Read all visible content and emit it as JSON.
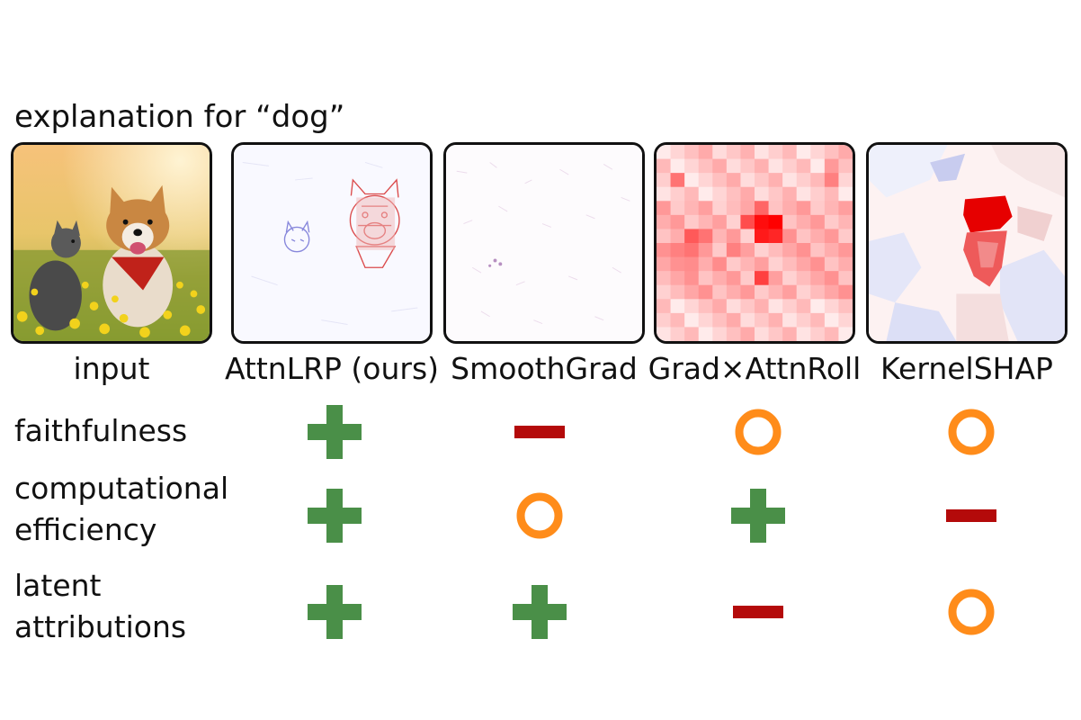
{
  "title": "explanation for “dog”",
  "columns": [
    {
      "key": "input",
      "label": "input"
    },
    {
      "key": "attnlrp",
      "label": "AttnLRP (ours)"
    },
    {
      "key": "smoothgrad",
      "label": "SmoothGrad"
    },
    {
      "key": "gradattnroll",
      "label": "Grad×AttnRoll"
    },
    {
      "key": "kernelshap",
      "label": "KernelSHAP"
    }
  ],
  "criteria": [
    {
      "lines": [
        "faithfulness"
      ],
      "ratings": {
        "attnlrp": "plus",
        "smoothgrad": "minus",
        "gradattnroll": "circle",
        "kernelshap": "circle"
      }
    },
    {
      "lines": [
        "computational",
        "efficiency"
      ],
      "ratings": {
        "attnlrp": "plus",
        "smoothgrad": "circle",
        "gradattnroll": "plus",
        "kernelshap": "minus"
      }
    },
    {
      "lines": [
        "latent",
        "attributions"
      ],
      "ratings": {
        "attnlrp": "plus",
        "smoothgrad": "plus",
        "gradattnroll": "minus",
        "kernelshap": "circle"
      }
    }
  ],
  "rating_colors": {
    "plus": "#4a8f48",
    "minus": "#b40a0a",
    "circle": "#ff8c1a"
  },
  "heatmap_colors": {
    "positive": "#ff0000",
    "negative": "#2a2ae0",
    "neutral": "#ffffff"
  }
}
